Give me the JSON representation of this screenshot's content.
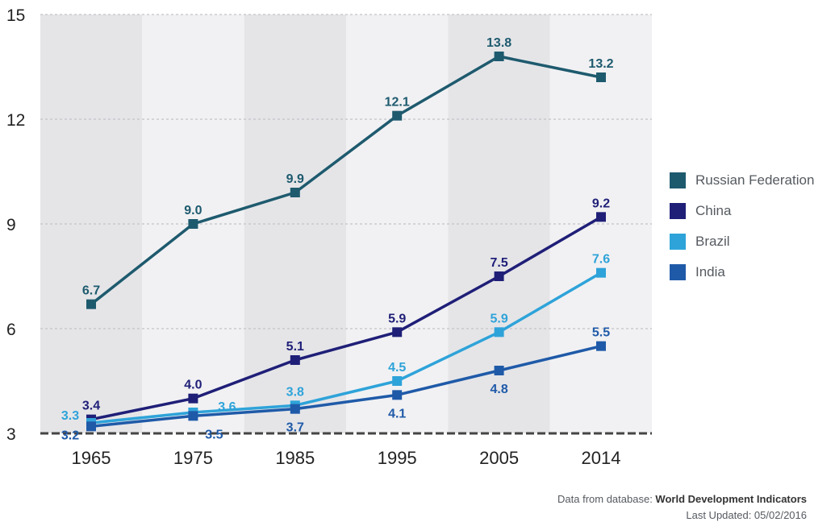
{
  "chart_data": {
    "type": "line",
    "title": "",
    "xlabel": "",
    "ylabel": "",
    "categories": [
      "1965",
      "1975",
      "1985",
      "1995",
      "2005",
      "2014"
    ],
    "ylim": [
      3,
      15
    ],
    "yticks": [
      "3",
      "6",
      "9",
      "12",
      "15"
    ],
    "grid": true,
    "legend_position": "right",
    "series": [
      {
        "name": "Russian Federation",
        "color": "#1e5a6e",
        "values": [
          6.7,
          9.0,
          9.9,
          12.1,
          13.8,
          13.2
        ],
        "labels": [
          "6.7",
          "9.0",
          "9.9",
          "12.1",
          "13.8",
          "13.2"
        ]
      },
      {
        "name": "China",
        "color": "#1f1f78",
        "values": [
          3.4,
          4.0,
          5.1,
          5.9,
          7.5,
          9.2
        ],
        "labels": [
          "3.4",
          "4.0",
          "5.1",
          "5.9",
          "7.5",
          "9.2"
        ]
      },
      {
        "name": "Brazil",
        "color": "#2ea3d9",
        "values": [
          3.3,
          3.6,
          3.8,
          4.5,
          5.9,
          7.6
        ],
        "labels": [
          "3.3",
          "3.6",
          "3.8",
          "4.5",
          "5.9",
          "7.6"
        ]
      },
      {
        "name": "India",
        "color": "#1f5aa8",
        "values": [
          3.2,
          3.5,
          3.7,
          4.1,
          4.8,
          5.5
        ],
        "labels": [
          "3.2",
          "3.5",
          "3.7",
          "4.1",
          "4.8",
          "5.5"
        ]
      }
    ]
  },
  "source": {
    "prefix": "Data from database: ",
    "database": "World Development Indicators",
    "updated": "Last Updated: 05/02/2016"
  }
}
